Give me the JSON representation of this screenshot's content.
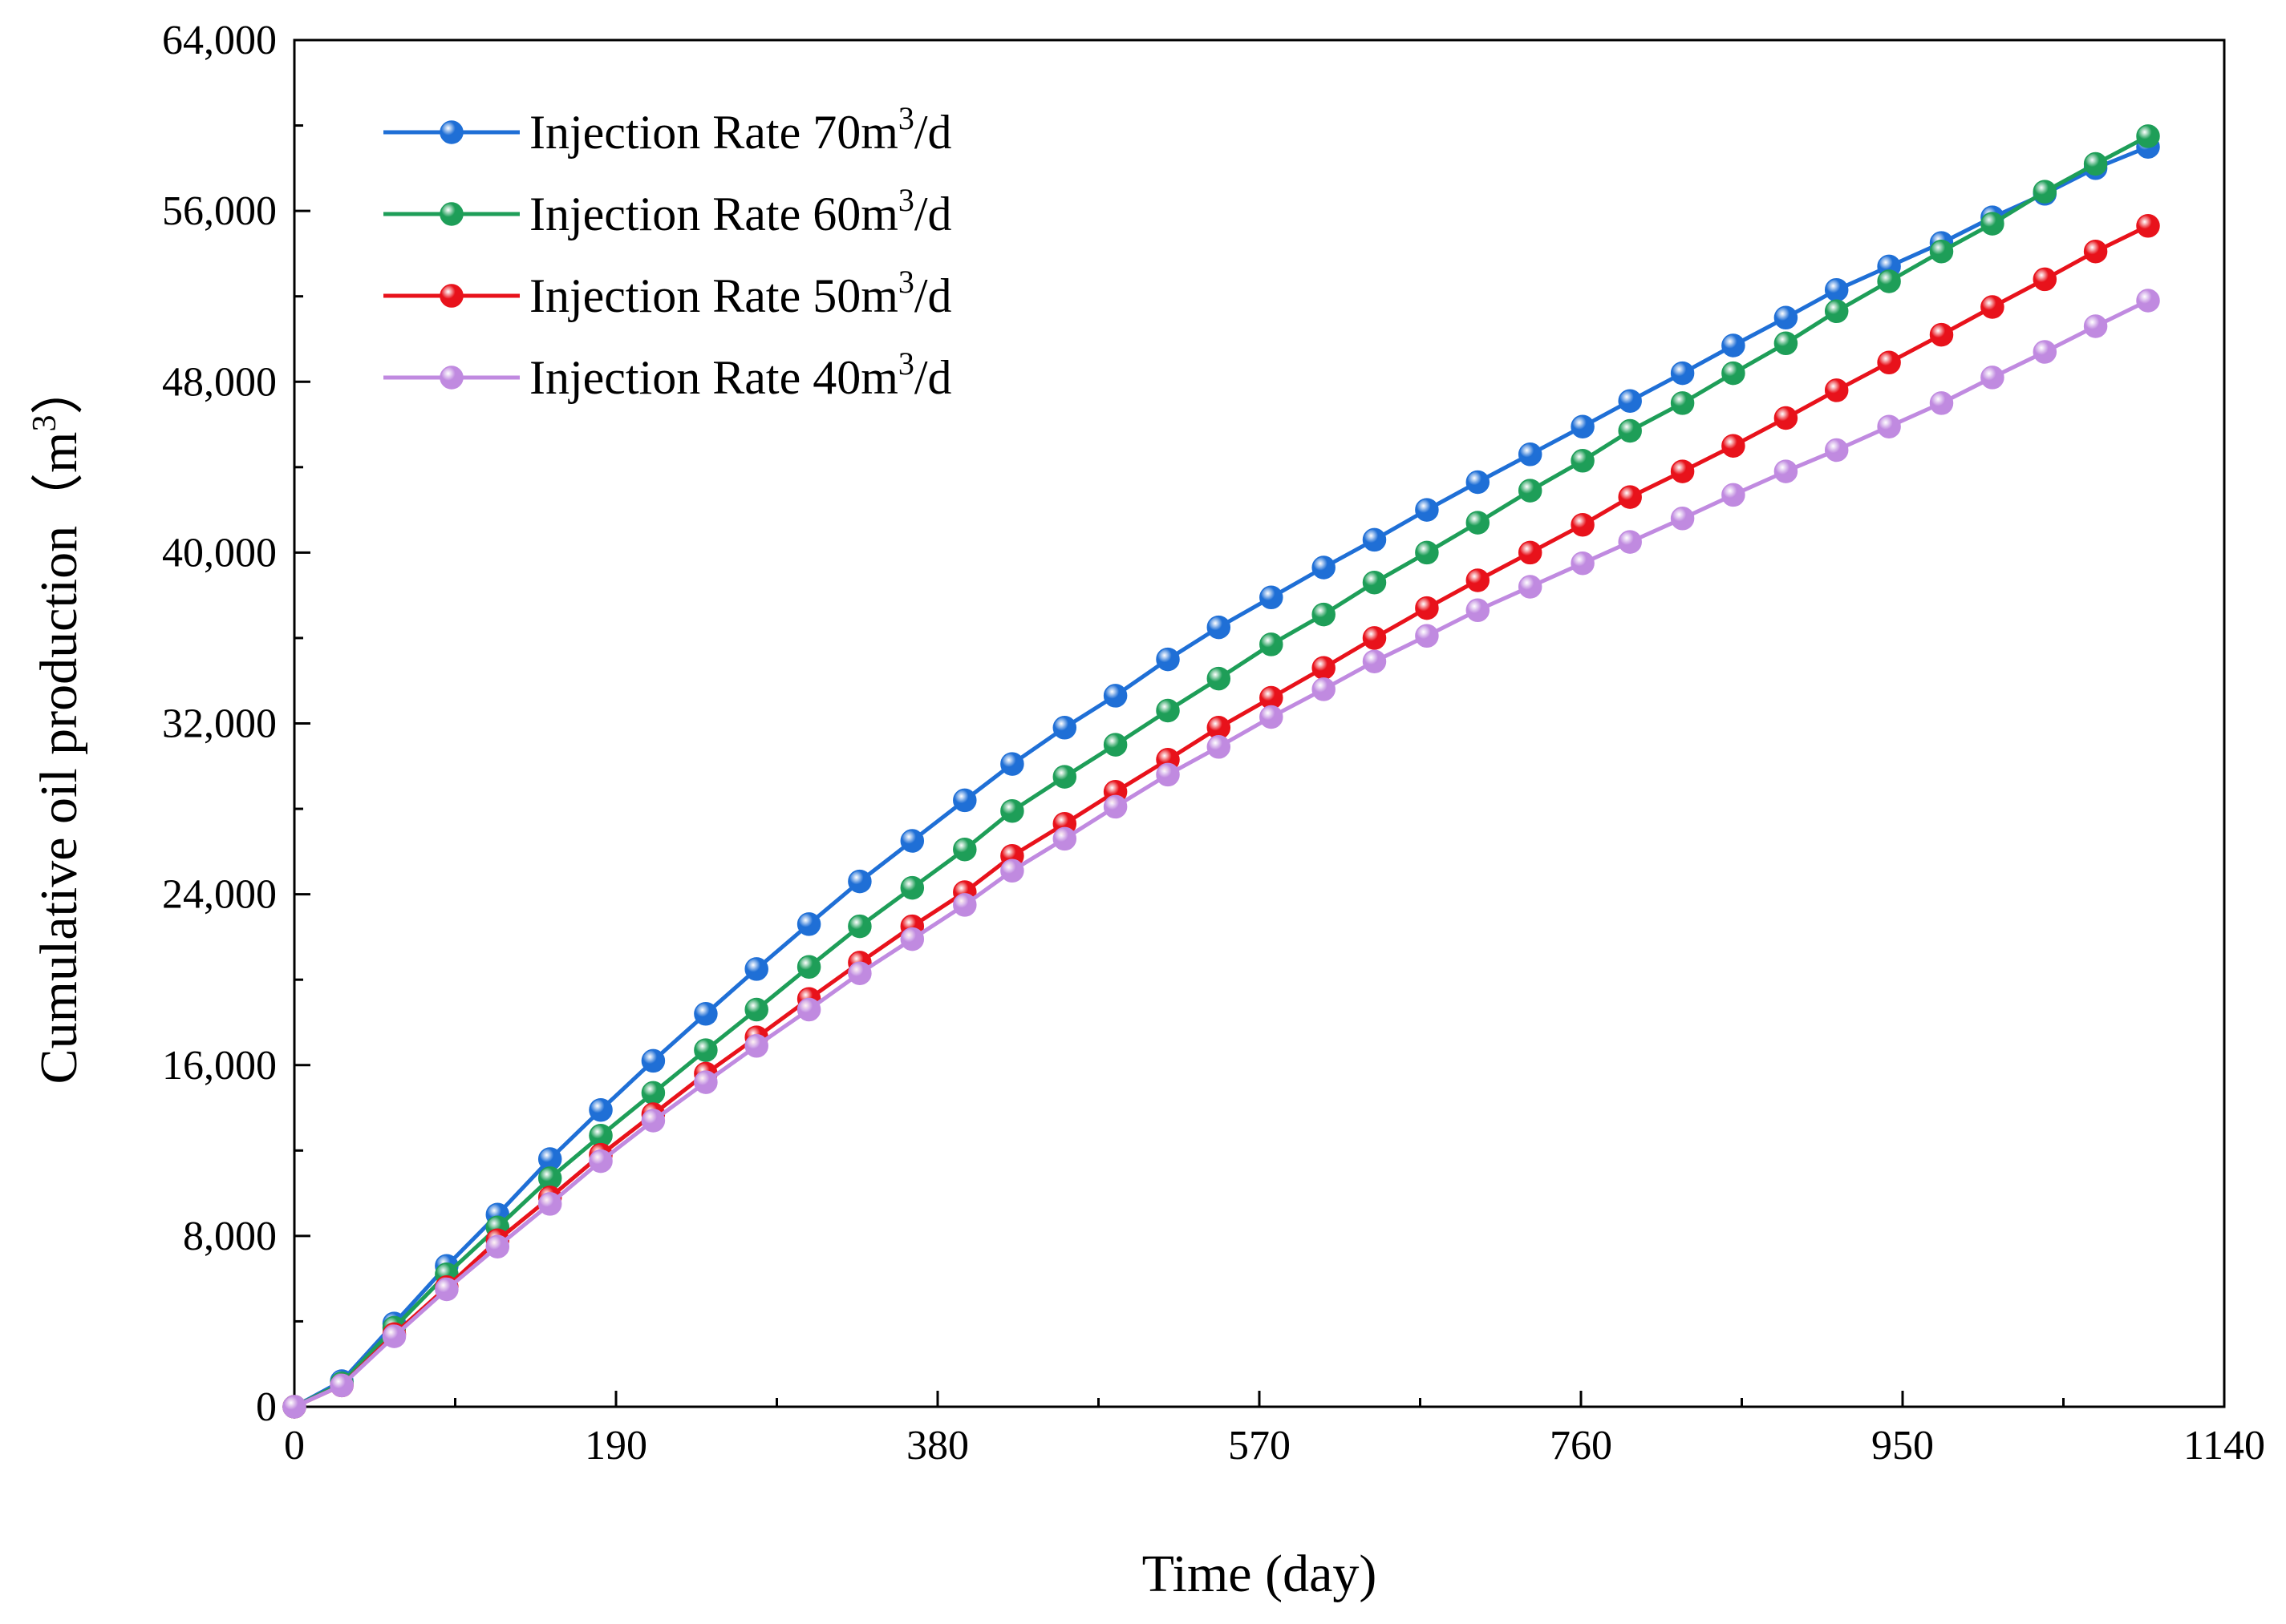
{
  "chart_data": {
    "type": "line",
    "xlabel": "Time (day)",
    "ylabel_main": "Cumulative oil production",
    "ylabel_unit_open": "（m",
    "ylabel_unit_sup": "3",
    "ylabel_unit_close": "）",
    "xlim": [
      0,
      1140
    ],
    "ylim": [
      0,
      64000
    ],
    "x_ticks": [
      0,
      190,
      380,
      570,
      760,
      950,
      1140
    ],
    "x_tick_labels": [
      "0",
      "190",
      "380",
      "570",
      "760",
      "950",
      "1140"
    ],
    "y_ticks": [
      0,
      8000,
      16000,
      24000,
      32000,
      40000,
      48000,
      56000,
      64000
    ],
    "y_tick_labels": [
      "0",
      "8,000",
      "16,000",
      "24,000",
      "32,000",
      "40,000",
      "48,000",
      "56,000",
      "64,000"
    ],
    "legend_position": "top-left",
    "x": [
      0,
      28,
      59,
      90,
      120,
      151,
      181,
      212,
      243,
      273,
      304,
      334,
      365,
      396,
      424,
      455,
      485,
      516,
      546,
      577,
      608,
      638,
      669,
      699,
      730,
      761,
      789,
      820,
      850,
      881,
      911,
      942,
      973,
      1003,
      1034,
      1064,
      1095
    ],
    "series": [
      {
        "name": "Injection Rate 70m",
        "unit_sup": "3",
        "unit_tail": "/d",
        "color": "#1f6fd6",
        "values": [
          0,
          1200,
          3900,
          6600,
          9000,
          11600,
          13900,
          16200,
          18400,
          20500,
          22600,
          24600,
          26500,
          28400,
          30100,
          31800,
          33300,
          35000,
          36500,
          37900,
          39300,
          40600,
          42000,
          43300,
          44600,
          45900,
          47100,
          48400,
          49700,
          51000,
          52300,
          53400,
          54500,
          55700,
          56800,
          58000,
          59000
        ]
      },
      {
        "name": "Injection Rate 60m",
        "unit_sup": "3",
        "unit_tail": "/d",
        "color": "#1e9e58",
        "values": [
          0,
          1100,
          3700,
          6200,
          8400,
          10700,
          12700,
          14700,
          16700,
          18600,
          20600,
          22500,
          24300,
          26100,
          27900,
          29500,
          31000,
          32600,
          34100,
          35700,
          37100,
          38600,
          40000,
          41400,
          42900,
          44300,
          45700,
          47000,
          48400,
          49800,
          51300,
          52700,
          54100,
          55400,
          56900,
          58200,
          59500
        ]
      },
      {
        "name": "Injection Rate 50m",
        "unit_sup": "3",
        "unit_tail": "/d",
        "color": "#e8121b",
        "values": [
          0,
          1000,
          3400,
          5600,
          7800,
          9800,
          11800,
          13700,
          15600,
          17300,
          19100,
          20800,
          22500,
          24100,
          25800,
          27300,
          28800,
          30300,
          31800,
          33200,
          34600,
          36000,
          37400,
          38700,
          40000,
          41300,
          42600,
          43800,
          45000,
          46300,
          47600,
          48900,
          50200,
          51500,
          52800,
          54100,
          55300
        ]
      },
      {
        "name": "Injection Rate 40m",
        "unit_sup": "3",
        "unit_tail": "/d",
        "color": "#c08ae0",
        "values": [
          0,
          1000,
          3300,
          5500,
          7500,
          9500,
          11500,
          13400,
          15200,
          16900,
          18600,
          20300,
          21900,
          23500,
          25100,
          26600,
          28100,
          29600,
          30900,
          32300,
          33600,
          34900,
          36100,
          37300,
          38400,
          39500,
          40500,
          41600,
          42700,
          43800,
          44800,
          45900,
          47000,
          48200,
          49400,
          50600,
          51800
        ]
      }
    ]
  }
}
